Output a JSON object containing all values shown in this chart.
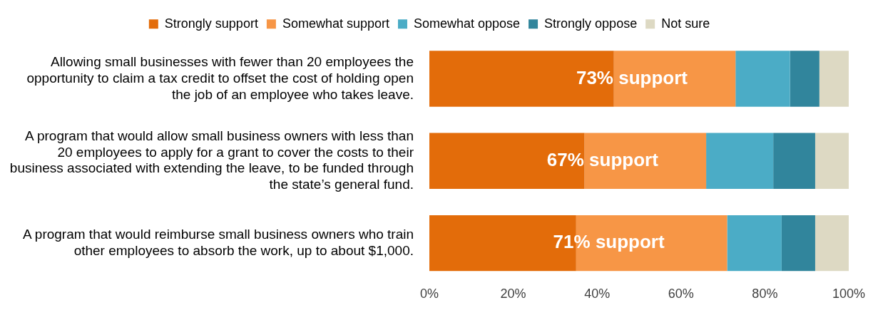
{
  "chart_data": {
    "type": "bar",
    "orientation": "horizontal",
    "stacked": true,
    "categories": [
      "Allowing small businesses with fewer than 20 employees the opportunity to claim a tax credit to offset the cost of holding open the job of an employee who takes leave.",
      "A program that would allow small business owners with less than 20 employees to apply for a grant to cover the costs to their business associated with extending the leave, to be funded through the state’s general fund.",
      "A program that would reimburse small business owners who train other employees to absorb the work, up to about $1,000."
    ],
    "series": [
      {
        "name": "Strongly support",
        "color": "#e36c0a",
        "values": [
          44,
          37,
          35
        ]
      },
      {
        "name": "Somewhat support",
        "color": "#f79646",
        "values": [
          29,
          29,
          36
        ]
      },
      {
        "name": "Somewhat oppose",
        "color": "#4bacc6",
        "values": [
          13,
          16,
          13
        ]
      },
      {
        "name": "Strongly oppose",
        "color": "#31859c",
        "values": [
          7,
          10,
          8
        ]
      },
      {
        "name": "Not sure",
        "color": "#ddd9c3",
        "values": [
          7,
          8,
          8
        ]
      }
    ],
    "xlim": [
      0,
      100
    ],
    "xticks": [
      {
        "value": 0,
        "label": "0%"
      },
      {
        "value": 20,
        "label": "20%"
      },
      {
        "value": 40,
        "label": "40%"
      },
      {
        "value": 60,
        "label": "60%"
      },
      {
        "value": 80,
        "label": "80%"
      },
      {
        "value": 100,
        "label": "100%"
      }
    ],
    "annotations": [
      "73% support",
      "67% support",
      "71% support"
    ],
    "grid": false,
    "legend": "top"
  }
}
